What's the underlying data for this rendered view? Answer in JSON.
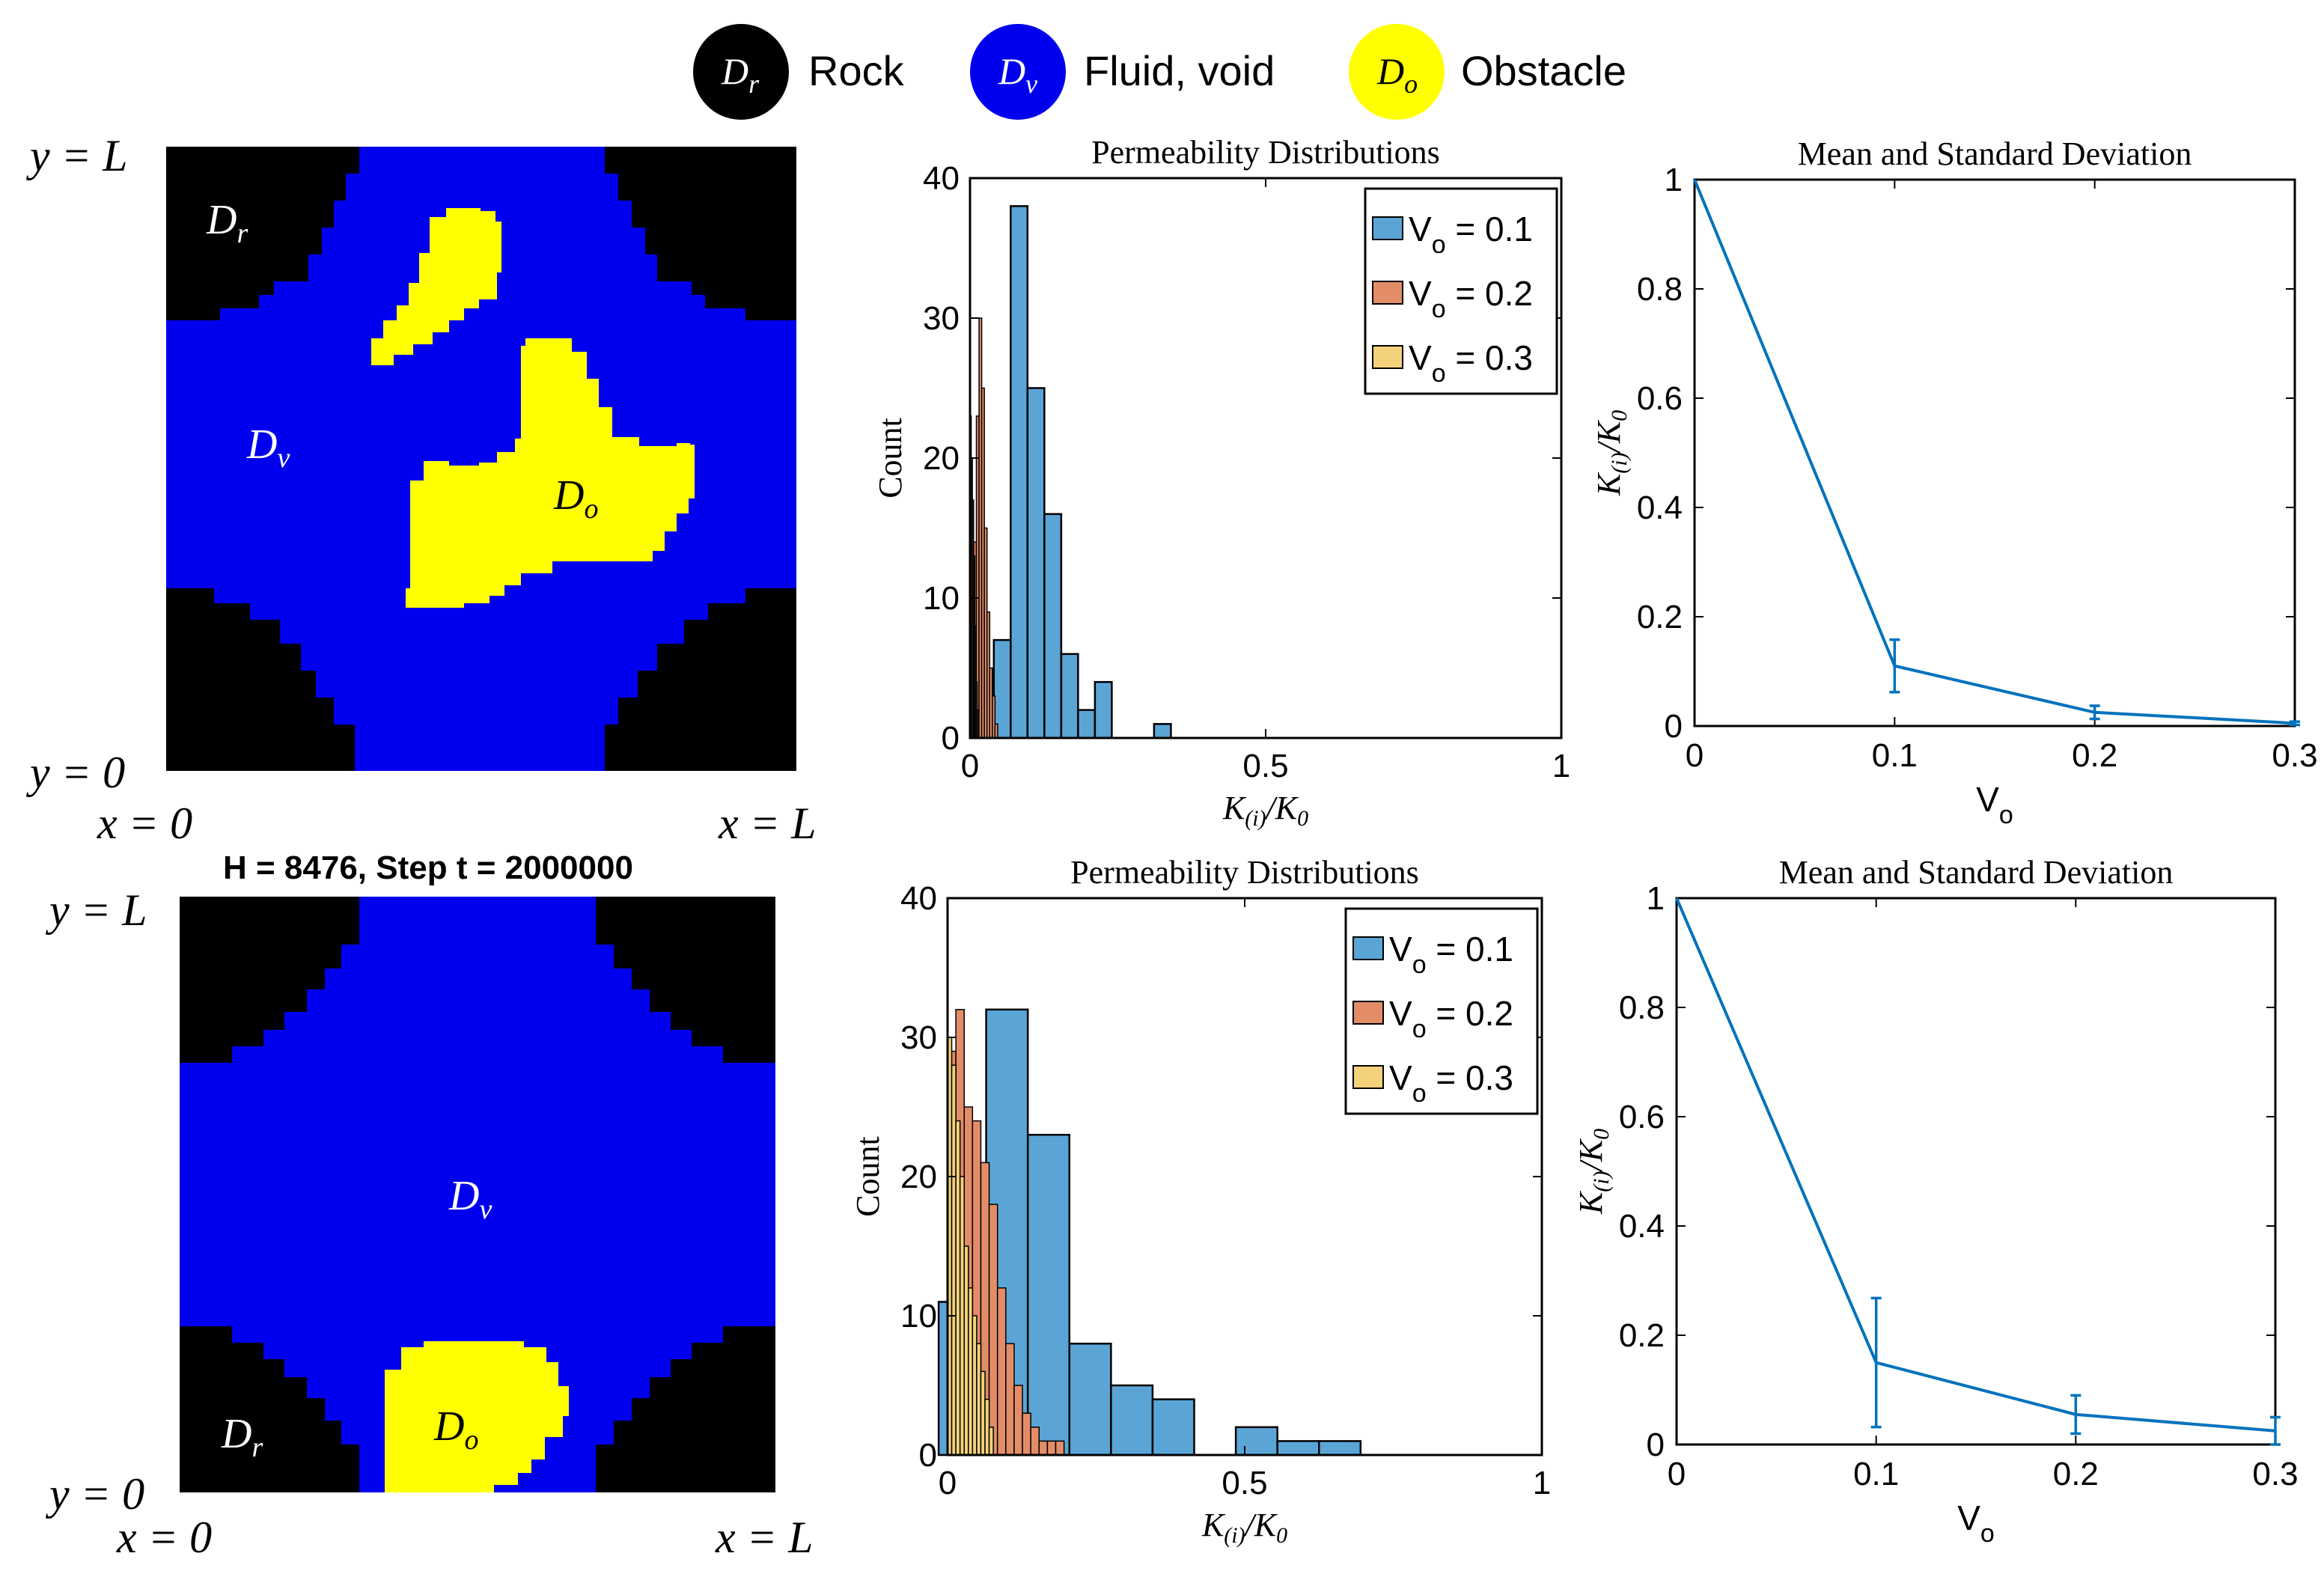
{
  "legend": {
    "items": [
      {
        "symbol": "D",
        "sub": "r",
        "label": "Rock",
        "color": "#000000"
      },
      {
        "symbol": "D",
        "sub": "v",
        "label": "Fluid, void",
        "color": "#0000ee"
      },
      {
        "symbol": "D",
        "sub": "o",
        "label": "Obstacle",
        "color": "#ffff00"
      }
    ]
  },
  "colors": {
    "rock": "#000000",
    "void": "#0000ee",
    "obstacle": "#ffff00",
    "series1": "#5aa5d6",
    "series2": "#e38d68",
    "series3": "#f4d27b",
    "line": "#0072bd"
  },
  "domains": [
    {
      "coord_labels": {
        "y_top": "y = L",
        "y_bottom": "y = 0",
        "x_left": "x = 0",
        "x_right": "x = L"
      },
      "title": "",
      "region_labels": {
        "rock": "D_r",
        "void": "D_v",
        "obstacle": "D_o"
      }
    },
    {
      "coord_labels": {
        "y_top": "y = L",
        "y_bottom": "y = 0",
        "x_left": "x = 0",
        "x_right": "x = L"
      },
      "title": "H = 8476, Step t = 2000000",
      "region_labels": {
        "rock": "D_r",
        "void": "D_v",
        "obstacle": "D_o"
      }
    }
  ],
  "chart_data": [
    {
      "type": "bar",
      "subtype": "histogram",
      "title": "Permeability Distributions",
      "xlabel": "K_(i)/K_0",
      "ylabel": "Count",
      "xlim": [
        0,
        1
      ],
      "ylim": [
        0,
        40
      ],
      "xticks": [
        "0",
        "0.5",
        "1"
      ],
      "yticks": [
        "0",
        "10",
        "20",
        "30",
        "40"
      ],
      "legend_position": "top-right",
      "series": [
        {
          "name": "V_o = 0.1",
          "label": "V",
          "sub": "o",
          "value_text": " = 0.1",
          "bin_width": 0.0285,
          "bins": [
            [
              0.045,
              2
            ],
            [
              0.0545,
              7
            ],
            [
              0.083,
              38
            ],
            [
              0.1115,
              25
            ],
            [
              0.14,
              16
            ],
            [
              0.1685,
              6
            ],
            [
              0.197,
              2
            ],
            [
              0.2255,
              4
            ],
            [
              0.3255,
              1
            ]
          ]
        },
        {
          "name": "V_o = 0.2",
          "label": "V",
          "sub": "o",
          "value_text": " = 0.2",
          "bin_width": 0.0045,
          "bins": [
            [
              0.004,
              8
            ],
            [
              0.0085,
              14
            ],
            [
              0.013,
              23
            ],
            [
              0.0175,
              30
            ],
            [
              0.022,
              25
            ],
            [
              0.0265,
              15
            ],
            [
              0.031,
              9
            ],
            [
              0.0355,
              5
            ],
            [
              0.04,
              3
            ],
            [
              0.0445,
              1
            ]
          ]
        },
        {
          "name": "V_o = 0.3",
          "label": "V",
          "sub": "o",
          "value_text": " = 0.3",
          "bin_width": 0.002,
          "bins": [
            [
              0.001,
              23
            ],
            [
              0.003,
              20
            ],
            [
              0.005,
              17
            ],
            [
              0.007,
              13
            ],
            [
              0.009,
              8
            ],
            [
              0.011,
              4
            ],
            [
              0.013,
              2
            ]
          ]
        }
      ]
    },
    {
      "type": "line",
      "title": "Mean and Standard Deviation",
      "xlabel": "V_o",
      "ylabel": "K_(i)/K_0",
      "xlim": [
        0,
        0.3
      ],
      "ylim": [
        0,
        1
      ],
      "xticks": [
        "0",
        "0.1",
        "0.2",
        "0.3"
      ],
      "yticks": [
        "0",
        "0.2",
        "0.4",
        "0.6",
        "0.8",
        "1"
      ],
      "series": [
        {
          "name": "mean",
          "x": [
            0,
            0.1,
            0.2,
            0.3
          ],
          "y": [
            1.0,
            0.11,
            0.025,
            0.005
          ],
          "err": [
            0,
            0.048,
            0.012,
            0.003
          ]
        }
      ]
    },
    {
      "type": "bar",
      "subtype": "histogram",
      "title": "Permeability Distributions",
      "xlabel": "K_(i)/K_0",
      "ylabel": "Count",
      "xlim": [
        0,
        1
      ],
      "ylim": [
        0,
        40
      ],
      "xticks": [
        "0",
        "0.5",
        "1"
      ],
      "yticks": [
        "0",
        "10",
        "20",
        "30",
        "40"
      ],
      "legend_position": "top-right",
      "series": [
        {
          "name": "V_o = 0.1",
          "label": "V",
          "sub": "o",
          "value_text": " = 0.1",
          "bin_width": 0.07,
          "bins": [
            [
              0.02,
              11
            ],
            [
              0.055,
              15
            ],
            [
              0.1,
              32
            ],
            [
              0.17,
              23
            ],
            [
              0.24,
              8
            ],
            [
              0.31,
              5
            ],
            [
              0.38,
              4
            ],
            [
              0.52,
              2
            ],
            [
              0.59,
              1
            ],
            [
              0.66,
              1
            ]
          ]
        },
        {
          "name": "V_o = 0.2",
          "label": "V",
          "sub": "o",
          "value_text": " = 0.2",
          "bin_width": 0.014,
          "bins": [
            [
              0.007,
              29
            ],
            [
              0.021,
              32
            ],
            [
              0.035,
              25
            ],
            [
              0.049,
              24
            ],
            [
              0.063,
              21
            ],
            [
              0.077,
              18
            ],
            [
              0.091,
              12
            ],
            [
              0.105,
              8
            ],
            [
              0.119,
              5
            ],
            [
              0.133,
              3
            ],
            [
              0.147,
              2
            ],
            [
              0.161,
              1
            ],
            [
              0.175,
              1
            ],
            [
              0.189,
              1
            ]
          ]
        },
        {
          "name": "V_o = 0.3",
          "label": "V",
          "sub": "o",
          "value_text": " = 0.3",
          "bin_width": 0.007,
          "bins": [
            [
              0.0035,
              30
            ],
            [
              0.0105,
              28
            ],
            [
              0.0175,
              24
            ],
            [
              0.0245,
              20
            ],
            [
              0.0315,
              15
            ],
            [
              0.0385,
              12
            ],
            [
              0.0455,
              10
            ],
            [
              0.0525,
              8
            ],
            [
              0.0595,
              6
            ],
            [
              0.0665,
              4
            ],
            [
              0.0735,
              2
            ]
          ]
        }
      ]
    },
    {
      "type": "line",
      "title": "Mean and Standard Deviation",
      "xlabel": "V_o",
      "ylabel": "K_(i)/K_0",
      "xlim": [
        0,
        0.3
      ],
      "ylim": [
        0,
        1
      ],
      "xticks": [
        "0",
        "0.1",
        "0.2",
        "0.3"
      ],
      "yticks": [
        "0",
        "0.2",
        "0.4",
        "0.6",
        "0.8",
        "1"
      ],
      "series": [
        {
          "name": "mean",
          "x": [
            0,
            0.1,
            0.2,
            0.3
          ],
          "y": [
            1.0,
            0.15,
            0.055,
            0.025
          ],
          "err": [
            0,
            0.118,
            0.035,
            0.025
          ]
        }
      ]
    }
  ]
}
